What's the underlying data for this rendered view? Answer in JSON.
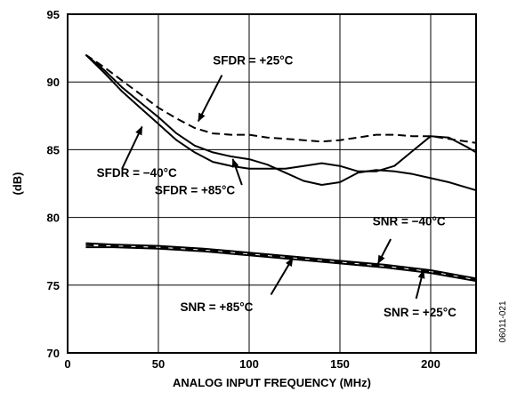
{
  "chart_data": {
    "type": "line",
    "title": "",
    "xlabel": "ANALOG INPUT FREQUENCY (MHz)",
    "ylabel": "(dB)",
    "xlim": [
      0,
      225
    ],
    "ylim": [
      70,
      95
    ],
    "x_ticks": [
      "0",
      "50",
      "100",
      "150",
      "200"
    ],
    "y_ticks": [
      "95",
      "90",
      "85",
      "80",
      "75",
      "70"
    ],
    "grid": true,
    "legend": "none",
    "figure_id": "06011-021",
    "series": [
      {
        "name": "SFDR = +25°C",
        "style": "dashed",
        "x": [
          10,
          20,
          30,
          40,
          50,
          60,
          70,
          80,
          90,
          100,
          110,
          120,
          130,
          140,
          150,
          160,
          170,
          180,
          190,
          200,
          210,
          220,
          225
        ],
        "y": [
          92.0,
          91.1,
          90.1,
          89.1,
          88.1,
          87.3,
          86.6,
          86.2,
          86.1,
          86.1,
          85.9,
          85.8,
          85.7,
          85.6,
          85.7,
          85.9,
          86.1,
          86.1,
          86.0,
          86.0,
          85.8,
          85.6,
          85.5
        ]
      },
      {
        "name": "SFDR = −40°C",
        "style": "solid",
        "x": [
          10,
          20,
          30,
          40,
          50,
          60,
          70,
          80,
          90,
          100,
          110,
          120,
          130,
          140,
          150,
          160,
          170,
          180,
          190,
          200,
          210,
          220,
          225
        ],
        "y": [
          92.0,
          90.7,
          89.3,
          88.1,
          86.9,
          85.7,
          84.8,
          84.1,
          83.8,
          83.6,
          83.6,
          83.6,
          83.8,
          84.0,
          83.8,
          83.4,
          83.4,
          83.8,
          84.9,
          86.0,
          85.9,
          85.2,
          84.8
        ]
      },
      {
        "name": "SFDR = +85°C",
        "style": "solid",
        "x": [
          10,
          20,
          30,
          40,
          50,
          60,
          70,
          80,
          90,
          100,
          110,
          120,
          130,
          140,
          150,
          160,
          170,
          180,
          190,
          200,
          210,
          220,
          225
        ],
        "y": [
          92.0,
          90.9,
          89.6,
          88.5,
          87.4,
          86.2,
          85.3,
          84.8,
          84.5,
          84.3,
          83.9,
          83.3,
          82.7,
          82.4,
          82.6,
          83.3,
          83.5,
          83.4,
          83.2,
          82.9,
          82.6,
          82.2,
          82.0
        ]
      },
      {
        "name": "SNR = −40°C",
        "style": "solid",
        "x": [
          10,
          25,
          50,
          75,
          100,
          125,
          150,
          175,
          200,
          225
        ],
        "y": [
          78.1,
          78.0,
          77.9,
          77.7,
          77.4,
          77.1,
          76.8,
          76.5,
          76.1,
          75.5
        ]
      },
      {
        "name": "SNR = +85°C",
        "style": "solid",
        "x": [
          10,
          25,
          50,
          75,
          100,
          125,
          150,
          175,
          200,
          225
        ],
        "y": [
          77.8,
          77.8,
          77.7,
          77.5,
          77.2,
          76.9,
          76.6,
          76.3,
          75.9,
          75.3
        ]
      },
      {
        "name": "SNR = +25°C",
        "style": "dashed",
        "x": [
          10,
          25,
          50,
          75,
          100,
          125,
          150,
          175,
          200,
          225
        ],
        "y": [
          77.95,
          77.9,
          77.8,
          77.6,
          77.3,
          77.0,
          76.7,
          76.4,
          76.0,
          75.4
        ]
      }
    ],
    "annotations": [
      {
        "text": "SFDR = +25°C",
        "label_x": 80,
        "label_y": 91.3,
        "arrow_from": [
          85,
          90.5
        ],
        "arrow_to": [
          72,
          87.1
        ]
      },
      {
        "text": "SFDR = −40°C",
        "label_x": 16,
        "label_y": 83.0,
        "arrow_from": [
          30,
          83.6
        ],
        "arrow_to": [
          41,
          86.7
        ]
      },
      {
        "text": "SFDR = +85°C",
        "label_x": 48,
        "label_y": 81.7,
        "arrow_from": [
          96,
          82.4
        ],
        "arrow_to": [
          91,
          84.3
        ]
      },
      {
        "text": "SNR = −40°C",
        "label_x": 168,
        "label_y": 79.4,
        "arrow_from": [
          178,
          78.4
        ],
        "arrow_to": [
          171,
          76.6
        ]
      },
      {
        "text": "SNR = +85°C",
        "label_x": 62,
        "label_y": 73.1,
        "arrow_from": [
          112,
          74.3
        ],
        "arrow_to": [
          124,
          77.0
        ]
      },
      {
        "text": "SNR = +25°C",
        "label_x": 174,
        "label_y": 72.7,
        "arrow_from": [
          192,
          74.0
        ],
        "arrow_to": [
          196,
          76.1
        ]
      }
    ]
  }
}
